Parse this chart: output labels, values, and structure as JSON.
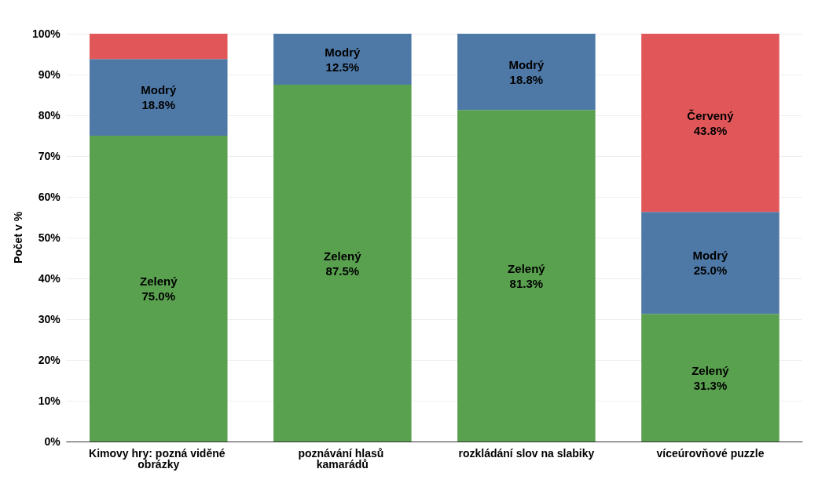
{
  "chart_data": {
    "type": "bar",
    "stacked": true,
    "ylabel": "Počet v %",
    "categories": [
      "Kimovy hry: pozná viděné obrázky",
      "poznávání hlasů kamarádů",
      "rozkládání slov na slabiky",
      "víceúrovňové puzzle"
    ],
    "series": [
      {
        "name": "Zelený",
        "color": "#59a14f",
        "values": [
          75.0,
          87.5,
          81.3,
          31.3
        ],
        "value_labels": [
          "75.0%",
          "87.5%",
          "81.3%",
          "31.3%"
        ]
      },
      {
        "name": "Modrý",
        "color": "#4e79a7",
        "values": [
          18.8,
          12.5,
          18.8,
          25.0
        ],
        "value_labels": [
          "18.8%",
          "12.5%",
          "18.8%",
          "25.0%"
        ]
      },
      {
        "name": "Červený",
        "color": "#e15759",
        "values": [
          6.2,
          0,
          0,
          43.8
        ],
        "value_labels": [
          null,
          null,
          null,
          "43.8%"
        ]
      }
    ],
    "ylim": [
      0,
      100
    ],
    "yticks": [
      {
        "value": 0,
        "label": "0%"
      },
      {
        "value": 10,
        "label": "10%"
      },
      {
        "value": 20,
        "label": "20%"
      },
      {
        "value": 30,
        "label": "30%"
      },
      {
        "value": 40,
        "label": "40%"
      },
      {
        "value": 50,
        "label": "50%"
      },
      {
        "value": 60,
        "label": "60%"
      },
      {
        "value": 70,
        "label": "70%"
      },
      {
        "value": 80,
        "label": "80%"
      },
      {
        "value": 90,
        "label": "90%"
      },
      {
        "value": 100,
        "label": "100%"
      }
    ],
    "grid": "y",
    "legend": false
  }
}
